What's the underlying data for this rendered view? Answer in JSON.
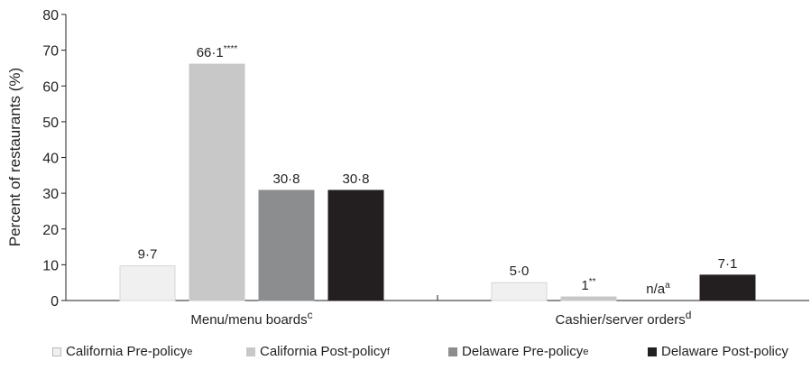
{
  "chart_data": {
    "type": "bar",
    "ylabel": "Percent of restaurants (%)",
    "ylim": [
      0,
      80
    ],
    "yticks": [
      "0",
      "10",
      "20",
      "30",
      "40",
      "50",
      "60",
      "70",
      "80"
    ],
    "categories": [
      {
        "label": "Menu/menu boards",
        "sup": "c"
      },
      {
        "label": "Cashier/server orders",
        "sup": "d"
      }
    ],
    "series": [
      {
        "name": "California Pre-policy",
        "sup": "e",
        "color": "#f0f0f0",
        "values": [
          9.7,
          5.0
        ],
        "labels": [
          "9·7",
          "5·0"
        ],
        "label_sups": [
          "",
          ""
        ]
      },
      {
        "name": "California Post-policy",
        "sup": "f",
        "color": "#c8c8c9",
        "values": [
          66.1,
          1.0
        ],
        "labels": [
          "66·1",
          "1"
        ],
        "label_sups": [
          "****",
          "**"
        ]
      },
      {
        "name": "Delaware Pre-policy",
        "sup": "e",
        "color": "#8c8d8f",
        "values": [
          30.8,
          null
        ],
        "labels": [
          "30·8",
          "n/a"
        ],
        "label_sups": [
          "",
          "a"
        ]
      },
      {
        "name": "Delaware Post-policy",
        "sup": "",
        "color": "#231f20",
        "values": [
          30.8,
          7.1
        ],
        "labels": [
          "30·8",
          "7·1"
        ],
        "label_sups": [
          "",
          ""
        ]
      }
    ],
    "grid": false,
    "legend_position": "bottom"
  }
}
